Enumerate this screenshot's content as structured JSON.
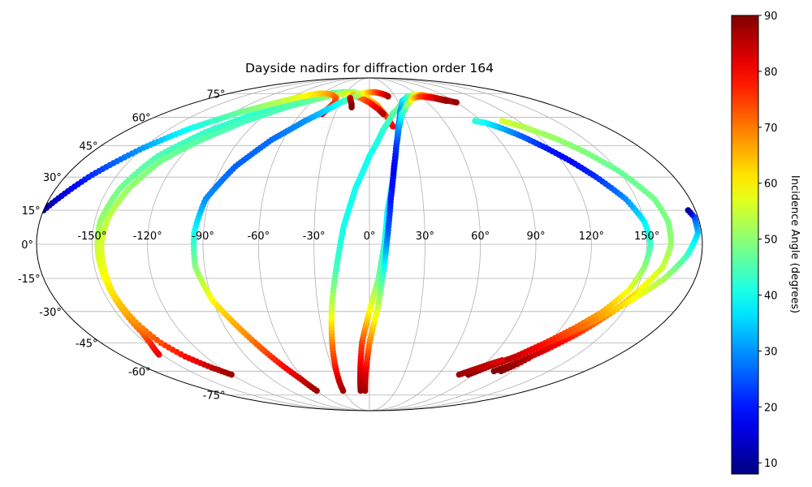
{
  "chart_data": {
    "type": "scatter",
    "projection": "mollweide",
    "title": "Dayside nadirs for diffraction order 164",
    "xlabel": "",
    "ylabel": "",
    "x_ticks": [
      "-150°",
      "-120°",
      "-90°",
      "-60°",
      "-30°",
      "0°",
      "30°",
      "60°",
      "90°",
      "120°",
      "150°"
    ],
    "y_ticks": [
      "-75°",
      "-60°",
      "-45°",
      "-30°",
      "-15°",
      "0°",
      "15°",
      "30°",
      "45°",
      "60°",
      "75°"
    ],
    "xlim": [
      -180,
      180
    ],
    "ylim": [
      -90,
      90
    ],
    "grid": true,
    "colorbar": {
      "label": "Incidence Angle (degrees)",
      "colormap": "jet",
      "range": [
        8,
        90
      ],
      "ticks": [
        "10",
        "20",
        "30",
        "40",
        "50",
        "60",
        "70",
        "80",
        "90"
      ]
    },
    "series": [
      {
        "segments": [
          [
            [
              -152,
              -51,
              82
            ],
            [
              -147,
              -45,
              77
            ],
            [
              -145,
              -40,
              72
            ],
            [
              -145,
              -30,
              66
            ],
            [
              -146,
              -18,
              60
            ],
            [
              -147,
              -5,
              56
            ],
            [
              -147,
              10,
              51
            ],
            [
              -143,
              25,
              48
            ],
            [
              -135,
              40,
              45
            ],
            [
              -120,
              52,
              43
            ],
            [
              -100,
              62,
              42
            ],
            [
              -75,
              70,
              43
            ],
            [
              -50,
              75,
              45
            ],
            [
              -35,
              76,
              47
            ]
          ],
          [
            [
              -35,
              76,
              47
            ],
            [
              -20,
              76,
              52
            ],
            [
              -5,
              73,
              60
            ],
            [
              8,
              67,
              68
            ],
            [
              15,
              60,
              75
            ],
            [
              18,
              55,
              80
            ]
          ]
        ]
      },
      {
        "segments": [
          [
            [
              -120,
              -62,
              88
            ],
            [
              -127,
              -58,
              85
            ],
            [
              -135,
              -52,
              79
            ],
            [
              -140,
              -45,
              74
            ],
            [
              -143,
              -35,
              68
            ],
            [
              -145,
              -22,
              62
            ],
            [
              -145,
              -10,
              58
            ],
            [
              -145,
              0,
              56
            ],
            [
              -143,
              12,
              54
            ],
            [
              -138,
              25,
              51
            ],
            [
              -130,
              38,
              48
            ],
            [
              -117,
              48,
              46
            ],
            [
              -100,
              58,
              44
            ],
            [
              -80,
              66,
              45
            ],
            [
              -60,
              71,
              47
            ],
            [
              -45,
              74,
              50
            ],
            [
              -30,
              75,
              55
            ],
            [
              -20,
              74,
              62
            ]
          ],
          [
            [
              -20,
              74,
              64
            ],
            [
              -10,
              72,
              70
            ],
            [
              0,
              69,
              76
            ],
            [
              8,
              65,
              82
            ],
            [
              12,
              62,
              86
            ]
          ]
        ]
      },
      {
        "segments": [
          [
            [
              -180,
              15,
              10
            ],
            [
              -165,
              31,
              22
            ],
            [
              -150,
              44,
              31
            ],
            [
              -135,
              54,
              40
            ],
            [
              -115,
              63,
              47
            ],
            [
              -95,
              69,
              53
            ],
            [
              -80,
              73,
              58
            ],
            [
              -65,
              75,
              62
            ],
            [
              -55,
              75,
              65
            ],
            [
              -45,
              74,
              68
            ],
            [
              -38,
              72,
              72
            ],
            [
              -36,
              69,
              75
            ],
            [
              -38,
              66,
              78
            ],
            [
              -41,
              62,
              80
            ]
          ]
        ]
      },
      {
        "segments": [
          [
            [
              -60,
              -72,
              88
            ],
            [
              -63,
              -65,
              84
            ],
            [
              -70,
              -55,
              78
            ],
            [
              -80,
              -40,
              68
            ],
            [
              -90,
              -25,
              60
            ],
            [
              -95,
              -10,
              50
            ],
            [
              -95,
              5,
              40
            ],
            [
              -92,
              20,
              30
            ],
            [
              -82,
              35,
              26
            ],
            [
              -68,
              48,
              27
            ],
            [
              -52,
              58,
              30
            ],
            [
              -40,
              64,
              35
            ],
            [
              -30,
              69,
              40
            ],
            [
              -20,
              72,
              46
            ],
            [
              -10,
              75,
              55
            ],
            [
              0,
              76,
              65
            ],
            [
              8,
              76,
              72
            ],
            [
              15,
              75,
              78
            ],
            [
              20,
              74,
              83
            ],
            [
              22,
              73,
              86
            ]
          ],
          [
            [
              -22,
              72,
              84
            ],
            [
              -20,
              70,
              86
            ],
            [
              -18,
              68,
              88
            ],
            [
              -17,
              66,
              90
            ]
          ]
        ]
      },
      {
        "segments": [
          [
            [
              -30,
              -72,
              88
            ],
            [
              -28,
              -62,
              82
            ],
            [
              -25,
              -45,
              70
            ],
            [
              -22,
              -28,
              55
            ],
            [
              -18,
              -10,
              44
            ],
            [
              -14,
              8,
              40
            ],
            [
              -8,
              25,
              40
            ],
            [
              0,
              40,
              40
            ],
            [
              10,
              53,
              42
            ],
            [
              20,
              62,
              45
            ],
            [
              30,
              67,
              48
            ],
            [
              40,
              70,
              55
            ],
            [
              50,
              72,
              62
            ],
            [
              60,
              73,
              70
            ],
            [
              70,
              73,
              78
            ],
            [
              80,
              71,
              85
            ],
            [
              90,
              69,
              88
            ]
          ]
        ]
      },
      {
        "segments": [
          [
            [
              -10,
              -72,
              88
            ],
            [
              -8,
              -62,
              84
            ],
            [
              -5,
              -45,
              75
            ],
            [
              0,
              -30,
              60
            ],
            [
              5,
              -15,
              48
            ],
            [
              8,
              0,
              42
            ],
            [
              10,
              15,
              38
            ],
            [
              14,
              30,
              35
            ],
            [
              18,
              45,
              30
            ],
            [
              22,
              55,
              28
            ],
            [
              28,
              64,
              30
            ],
            [
              35,
              70,
              35
            ],
            [
              45,
              73,
              42
            ],
            [
              55,
              74,
              55
            ],
            [
              65,
              74,
              68
            ],
            [
              75,
              72,
              78
            ],
            [
              85,
              70,
              86
            ]
          ]
        ]
      },
      {
        "segments": [
          [
            [
              -5,
              -72,
              88
            ],
            [
              -3,
              -60,
              82
            ],
            [
              0,
              -45,
              70
            ],
            [
              5,
              -28,
              55
            ],
            [
              8,
              -10,
              40
            ],
            [
              10,
              5,
              26
            ],
            [
              12,
              20,
              20
            ],
            [
              15,
              35,
              18
            ],
            [
              18,
              45,
              22
            ],
            [
              22,
              54,
              30
            ],
            [
              28,
              62,
              40
            ],
            [
              38,
              68,
              50
            ],
            [
              50,
              72,
              62
            ],
            [
              60,
              73,
              74
            ],
            [
              72,
              72,
              82
            ],
            [
              82,
              70,
              88
            ]
          ]
        ]
      },
      {
        "segments": [
          [
            [
              104,
              -60,
              90
            ],
            [
              114,
              -55,
              86
            ],
            [
              124,
              -48,
              82
            ],
            [
              134,
              -40,
              76
            ],
            [
              144,
              -30,
              68
            ],
            [
              152,
              -20,
              60
            ],
            [
              160,
              -10,
              55
            ],
            [
              163,
              0,
              51
            ],
            [
              163,
              10,
              49
            ],
            [
              160,
              20,
              48
            ],
            [
              150,
              33,
              47
            ],
            [
              140,
              42,
              49
            ],
            [
              130,
              49,
              51
            ],
            [
              117,
              55,
              53
            ],
            [
              107,
              58,
              56
            ]
          ]
        ]
      },
      {
        "segments": [
          [
            [
              86,
              -62,
              90
            ],
            [
              96,
              -57,
              86
            ],
            [
              107,
              -52,
              82
            ],
            [
              118,
              -45,
              77
            ],
            [
              128,
              -38,
              72
            ],
            [
              138,
              -30,
              66
            ],
            [
              146,
              -20,
              58
            ],
            [
              150,
              -10,
              50
            ],
            [
              152,
              0,
              44
            ],
            [
              150,
              10,
              38
            ],
            [
              144,
              20,
              30
            ],
            [
              134,
              30,
              22
            ],
            [
              125,
              38,
              18
            ],
            [
              117,
              44,
              20
            ],
            [
              108,
              50,
              26
            ],
            [
              100,
              54,
              32
            ],
            [
              92,
              57,
              38
            ],
            [
              85,
              58,
              42
            ]
          ]
        ]
      },
      {
        "segments": [
          [
            [
              95,
              -57,
              88
            ],
            [
              108,
              -52,
              84
            ],
            [
              120,
              -45,
              78
            ],
            [
              135,
              -36,
              70
            ],
            [
              150,
              -25,
              60
            ],
            [
              163,
              -15,
              52
            ],
            [
              172,
              -5,
              44
            ],
            [
              178,
              5,
              35
            ],
            [
              178,
              12,
              25
            ],
            [
              176,
              15,
              10
            ]
          ]
        ]
      },
      {
        "segments": [
          [
            [
              78,
              -62,
              88
            ],
            [
              86,
              -59,
              86
            ],
            [
              94,
              -56,
              84
            ],
            [
              100,
              -54,
              82
            ]
          ],
          [
            [
              110,
              -60,
              90
            ],
            [
              114,
              -57,
              88
            ],
            [
              118,
              -53,
              86
            ]
          ]
        ]
      }
    ]
  }
}
